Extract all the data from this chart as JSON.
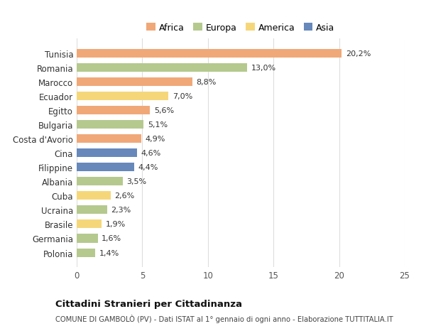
{
  "countries": [
    "Tunisia",
    "Romania",
    "Marocco",
    "Ecuador",
    "Egitto",
    "Bulgaria",
    "Costa d'Avorio",
    "Cina",
    "Filippine",
    "Albania",
    "Cuba",
    "Ucraina",
    "Brasile",
    "Germania",
    "Polonia"
  ],
  "values": [
    20.2,
    13.0,
    8.8,
    7.0,
    5.6,
    5.1,
    4.9,
    4.6,
    4.4,
    3.5,
    2.6,
    2.3,
    1.9,
    1.6,
    1.4
  ],
  "labels": [
    "20,2%",
    "13,0%",
    "8,8%",
    "7,0%",
    "5,6%",
    "5,1%",
    "4,9%",
    "4,6%",
    "4,4%",
    "3,5%",
    "2,6%",
    "2,3%",
    "1,9%",
    "1,6%",
    "1,4%"
  ],
  "continents": [
    "Africa",
    "Europa",
    "Africa",
    "America",
    "Africa",
    "Europa",
    "Africa",
    "Asia",
    "Asia",
    "Europa",
    "America",
    "Europa",
    "America",
    "Europa",
    "Europa"
  ],
  "colors": {
    "Africa": "#F0A878",
    "Europa": "#B5C98E",
    "America": "#F5D77A",
    "Asia": "#6688BB"
  },
  "legend_order": [
    "Africa",
    "Europa",
    "America",
    "Asia"
  ],
  "title": "Cittadini Stranieri per Cittadinanza",
  "subtitle": "COMUNE DI GAMBOLÒ (PV) - Dati ISTAT al 1° gennaio di ogni anno - Elaborazione TUTTITALIA.IT",
  "xlim": [
    0,
    25
  ],
  "xticks": [
    0,
    5,
    10,
    15,
    20,
    25
  ],
  "bg_color": "#FFFFFF",
  "grid_color": "#DDDDDD",
  "bar_height": 0.6,
  "figsize": [
    6.0,
    4.6
  ],
  "dpi": 100
}
